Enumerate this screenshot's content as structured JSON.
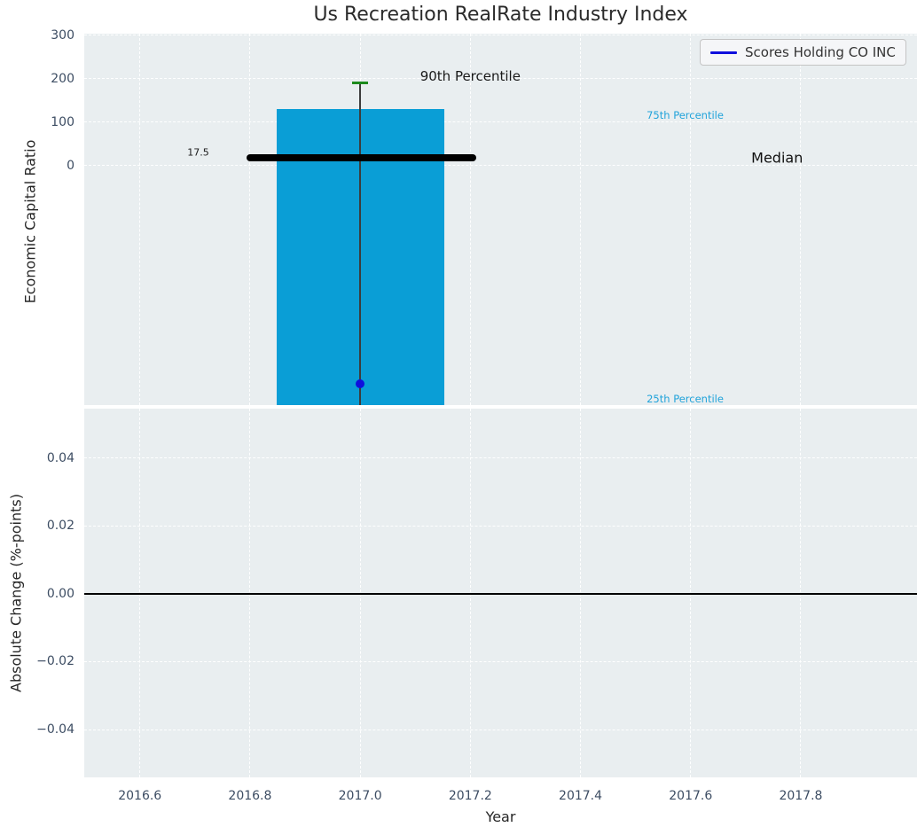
{
  "colors": {
    "bar_fill": "#0a9ed6",
    "percentile_text": "#21a3da",
    "median_line": "#000000",
    "whisker_line": "#3c3c3c",
    "p90_cap": "#1c8a1c",
    "company_marker": "#0f0fdd",
    "legend_line": "#0f0fdd",
    "axes_background": "#e9eef0",
    "grid": "#ffffff",
    "tick_label": "#3d4d63",
    "zero_line": "#000000"
  },
  "chart_data": [
    {
      "type": "bar",
      "title": "Us Recreation RealRate Industry Index",
      "ylabel": "Economic Capital Ratio",
      "xlim": [
        2016.499,
        2018.011
      ],
      "ylim": [
        -551,
        304
      ],
      "grid": true,
      "yticks": {
        "values": [
          300,
          200,
          100,
          0
        ],
        "labels": [
          "300",
          "200",
          "100",
          "0"
        ]
      },
      "xticks": {
        "values": [
          2016.6,
          2016.8,
          2017.0,
          2017.2,
          2017.4,
          2017.6,
          2017.8
        ],
        "labels": []
      },
      "percentiles": {
        "p90": 190,
        "p75": 130,
        "median": 17.5,
        "p25_below_axis": true
      },
      "bar": {
        "x_left": 2016.848,
        "x_right": 2017.152,
        "top": 130,
        "bottom": -551,
        "clipped_at_bottom": true
      },
      "whisker": {
        "x": 2017.0,
        "top": 190,
        "bottom": -551,
        "cap_halfwidth_years": 0.0145
      },
      "median_line": {
        "value": 17.5,
        "x_start": 2016.793,
        "x_end": 2017.21
      },
      "company_point": {
        "name": "Scores Holding CO INC",
        "x": 2017.0,
        "y": -503
      },
      "legend": {
        "label": "Scores Holding CO INC",
        "position": "upper right"
      },
      "annotations": [
        {
          "name": "annotation-90th-percentile",
          "text": "90th Percentile",
          "x": 2017.2,
          "y": 206,
          "size": 15,
          "color": "#1a1a1a"
        },
        {
          "name": "annotation-75th-percentile",
          "text": "75th Percentile",
          "x": 2017.59,
          "y": 116,
          "size": 11.5,
          "color": "#21a3da"
        },
        {
          "name": "annotation-median",
          "text": "Median",
          "x": 2017.757,
          "y": 18,
          "size": 16,
          "color": "#111111"
        },
        {
          "name": "annotation-median-value",
          "text": "17.5",
          "x": 2016.706,
          "y": 31,
          "size": 11,
          "color": "#1a1a1a"
        },
        {
          "name": "annotation-25th-percentile",
          "text": "25th Percentile",
          "x": 2017.59,
          "y": -537,
          "size": 11.5,
          "color": "#21a3da"
        }
      ]
    },
    {
      "type": "line",
      "ylabel": "Absolute Change (%-points)",
      "xlabel": "Year",
      "xlim": [
        2016.499,
        2018.011
      ],
      "ylim": [
        -0.0541,
        0.0546
      ],
      "grid": true,
      "yticks": {
        "values": [
          0.04,
          0.02,
          0,
          -0.02,
          -0.04
        ],
        "labels": [
          "0.04",
          "0.02",
          "0.00",
          "−0.02",
          "−0.04"
        ]
      },
      "xticks": {
        "values": [
          2016.6,
          2016.8,
          2017.0,
          2017.2,
          2017.4,
          2017.6,
          2017.8
        ],
        "labels": [
          "2016.6",
          "2016.8",
          "2017.0",
          "2017.2",
          "2017.4",
          "2017.6",
          "2017.8"
        ]
      },
      "zero_line": 0.0,
      "series": []
    }
  ]
}
